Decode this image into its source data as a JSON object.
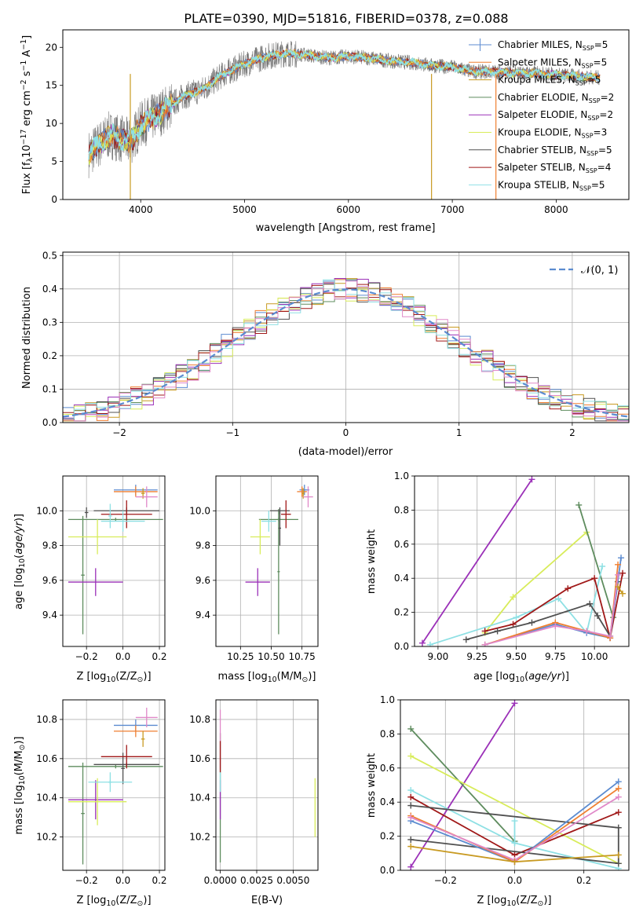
{
  "figure": {
    "title": "PLATE=0390, MJD=51816, FIBERID=0378, z=0.088"
  },
  "colors": {
    "Chabrier MILES": "#5b8bd0",
    "Salpeter MILES": "#ef7f30",
    "Kroupa MILES": "#c89a22",
    "Chabrier ELODIE": "#5e8c5e",
    "Salpeter ELODIE": "#9b30b8",
    "Kroupa ELODIE": "#d8ec5a",
    "Chabrier STELIB": "#505050",
    "Salpeter STELIB": "#a01818",
    "Kroupa STELIB": "#8ee0e4",
    "pink": "#e088c8",
    "normal_curve": "#5b8bd0",
    "grid": "#b0b0b0"
  },
  "chart_data": [
    {
      "id": "spectrum",
      "type": "line",
      "xlabel": "wavelength [Angstrom, rest frame]",
      "ylabel": "Flux [f",
      "ylabel_parts": [
        "Flux [f",
        "λ",
        "10",
        "−17",
        " erg cm",
        "−2",
        " s",
        "−1",
        " A",
        "−1",
        "]"
      ],
      "xlim": [
        3250,
        8700
      ],
      "ylim": [
        0,
        22.3
      ],
      "xticks": [
        4000,
        5000,
        6000,
        7000,
        8000
      ],
      "yticks": [
        0,
        5,
        10,
        15,
        20
      ],
      "grid": false,
      "legend_position": "upper right",
      "continuum": {
        "x": [
          3500,
          3700,
          3900,
          4000,
          4200,
          4400,
          4600,
          4800,
          5000,
          5200,
          5400,
          5600,
          5800,
          6000,
          6200,
          6400,
          6600,
          6800,
          7000,
          7200,
          7400,
          7600,
          7800,
          8000,
          8200,
          8400
        ],
        "y": [
          6.0,
          8.5,
          7.5,
          9.8,
          11.5,
          13.5,
          14.5,
          16.5,
          17.8,
          18.8,
          19.2,
          19.0,
          18.6,
          18.8,
          18.6,
          18.2,
          18.0,
          17.6,
          17.4,
          16.8,
          16.8,
          16.6,
          16.6,
          16.4,
          16.2,
          16.0
        ]
      },
      "series": [
        {
          "name": "Chabrier MILES",
          "nssp": "5"
        },
        {
          "name": "Salpeter MILES",
          "nssp": "5"
        },
        {
          "name": "Kroupa MILES",
          "nssp": "5"
        },
        {
          "name": "Chabrier ELODIE",
          "nssp": "2"
        },
        {
          "name": "Salpeter ELODIE",
          "nssp": "2"
        },
        {
          "name": "Kroupa ELODIE",
          "nssp": "3"
        },
        {
          "name": "Chabrier STELIB",
          "nssp": "5"
        },
        {
          "name": "Salpeter STELIB",
          "nssp": "4"
        },
        {
          "name": "Kroupa STELIB",
          "nssp": "5"
        }
      ],
      "legend_nssp_label": "N",
      "legend_nssp_sub": "SSP"
    },
    {
      "id": "residuals",
      "type": "line",
      "xlabel": "(data-model)/error",
      "ylabel": "Normed distribution",
      "xlim": [
        -2.5,
        2.5
      ],
      "ylim": [
        0,
        0.51
      ],
      "xticks": [
        -2,
        -1,
        0,
        1,
        2
      ],
      "xtick_labels": [
        "−2",
        "−1",
        "0",
        "1",
        "2"
      ],
      "yticks": [
        0.0,
        0.1,
        0.2,
        0.3,
        0.4,
        0.5
      ],
      "ytick_labels": [
        "0.0",
        "0.1",
        "0.2",
        "0.3",
        "0.4",
        "0.5"
      ],
      "grid": true,
      "legend_position": "upper right",
      "legend_label": "𝒩(0, 1)",
      "bin_width": 0.1
    },
    {
      "id": "age_vs_Z",
      "type": "scatter",
      "xlabel": "Z [log",
      "xlabel_parts": [
        "Z [log",
        "10",
        "(Z/Z",
        "⊙",
        ")]"
      ],
      "ylabel_parts": [
        "age  [log",
        "10",
        "(",
        "age/yr",
        ")]"
      ],
      "xlim": [
        -0.33,
        0.23
      ],
      "ylim": [
        9.22,
        10.2
      ],
      "xticks": [
        -0.2,
        0.0,
        0.2
      ],
      "xtick_labels": [
        "−0.2",
        "0.0",
        "0.2"
      ],
      "yticks": [
        9.4,
        9.6,
        9.8,
        10.0
      ],
      "ytick_labels": [
        "9.4",
        "9.6",
        "9.8",
        "10.0"
      ],
      "grid": true,
      "points": [
        {
          "series": "Chabrier MILES",
          "x": 0.07,
          "xerr": 0.12,
          "y": 10.12,
          "yerr": 0.03
        },
        {
          "series": "Salpeter MILES",
          "x": 0.07,
          "xerr": 0.12,
          "y": 10.11,
          "yerr": 0.03
        },
        {
          "series": "Kroupa MILES",
          "x": 0.11,
          "xerr": 0.01,
          "y": 10.1,
          "yerr": 0.03
        },
        {
          "series": "pink",
          "x": 0.13,
          "xerr": 0.06,
          "y": 10.08,
          "yerr": 0.06
        },
        {
          "series": "Chabrier ELODIE",
          "x": -0.04,
          "xerr": 0.26,
          "y": 9.95,
          "yerr": 0.01
        },
        {
          "series": "Chabrier ELODIE",
          "x": -0.22,
          "xerr": 0.01,
          "y": 9.63,
          "yerr": 0.34
        },
        {
          "series": "Salpeter ELODIE",
          "x": -0.15,
          "xerr": 0.15,
          "y": 9.59,
          "yerr": 0.08
        },
        {
          "series": "Kroupa ELODIE",
          "x": -0.14,
          "xerr": 0.16,
          "y": 9.85,
          "yerr": 0.1
        },
        {
          "series": "Chabrier STELIB",
          "x": 0.02,
          "xerr": 0.18,
          "y": 10.0,
          "yerr": 0.02
        },
        {
          "series": "Chabrier STELIB",
          "x": -0.2,
          "xerr": 0.01,
          "y": 9.99,
          "yerr": 0.03
        },
        {
          "series": "Salpeter STELIB",
          "x": 0.02,
          "xerr": 0.14,
          "y": 9.98,
          "yerr": 0.08
        },
        {
          "series": "Kroupa STELIB",
          "x": 0.0,
          "xerr": 0.12,
          "y": 9.94,
          "yerr": 0.06
        },
        {
          "series": "Kroupa STELIB",
          "x": -0.07,
          "xerr": 0.01,
          "y": 9.97,
          "yerr": 0.07
        }
      ]
    },
    {
      "id": "age_vs_mass",
      "type": "scatter",
      "xlabel_parts": [
        "mass [log",
        "10",
        "(M/M",
        "⊙",
        ")]"
      ],
      "xlim": [
        10.05,
        10.88
      ],
      "ylim": [
        9.22,
        10.2
      ],
      "xticks": [
        10.25,
        10.5,
        10.75
      ],
      "xtick_labels": [
        "10.25",
        "10.50",
        "10.75"
      ],
      "yticks": [
        9.4,
        9.6,
        9.8,
        10.0
      ],
      "ytick_labels": [
        "9.4",
        "9.6",
        "9.8",
        "10.0"
      ],
      "grid": true,
      "points": [
        {
          "series": "Chabrier MILES",
          "x": 10.77,
          "xerr": 0.04,
          "y": 10.12,
          "yerr": 0.03
        },
        {
          "series": "Salpeter MILES",
          "x": 10.75,
          "xerr": 0.04,
          "y": 10.11,
          "yerr": 0.03
        },
        {
          "series": "Kroupa MILES",
          "x": 10.76,
          "xerr": 0.01,
          "y": 10.1,
          "yerr": 0.03
        },
        {
          "series": "pink",
          "x": 10.8,
          "xerr": 0.04,
          "y": 10.08,
          "yerr": 0.06
        },
        {
          "series": "Chabrier ELODIE",
          "x": 10.56,
          "xerr": 0.16,
          "y": 9.95,
          "yerr": 0.01
        },
        {
          "series": "Chabrier ELODIE",
          "x": 10.56,
          "xerr": 0.01,
          "y": 9.65,
          "yerr": 0.36
        },
        {
          "series": "Salpeter ELODIE",
          "x": 10.39,
          "xerr": 0.1,
          "y": 9.59,
          "yerr": 0.08
        },
        {
          "series": "Kroupa ELODIE",
          "x": 10.41,
          "xerr": 0.08,
          "y": 9.85,
          "yerr": 0.1
        },
        {
          "series": "Chabrier STELIB",
          "x": 10.57,
          "xerr": 0.08,
          "y": 10.0,
          "yerr": 0.02
        },
        {
          "series": "Chabrier STELIB",
          "x": 10.57,
          "xerr": 0.01,
          "y": 9.9,
          "yerr": 0.1
        },
        {
          "series": "Salpeter STELIB",
          "x": 10.62,
          "xerr": 0.04,
          "y": 9.98,
          "yerr": 0.08
        },
        {
          "series": "Kroupa STELIB",
          "x": 10.48,
          "xerr": 0.06,
          "y": 9.94,
          "yerr": 0.06
        }
      ]
    },
    {
      "id": "mass_weight_vs_age",
      "type": "line",
      "xlabel_parts": [
        "age  [log",
        "10",
        "(",
        "age/yr",
        ")]"
      ],
      "ylabel": "mass weight",
      "xlim": [
        8.85,
        10.22
      ],
      "ylim": [
        0,
        1.0
      ],
      "xticks": [
        9.0,
        9.25,
        9.5,
        9.75,
        10.0
      ],
      "xtick_labels": [
        "9.00",
        "9.25",
        "9.50",
        "9.75",
        "10.00"
      ],
      "yticks": [
        0.0,
        0.2,
        0.4,
        0.6,
        0.8,
        1.0
      ],
      "ytick_labels": [
        "0.0",
        "0.2",
        "0.4",
        "0.6",
        "0.8",
        "1.0"
      ],
      "grid": true,
      "series": [
        {
          "name": "Salpeter ELODIE",
          "x": [
            8.9,
            9.6
          ],
          "y": [
            0.02,
            0.98
          ]
        },
        {
          "name": "Kroupa ELODIE",
          "x": [
            9.3,
            9.48,
            9.95
          ],
          "y": [
            0.08,
            0.29,
            0.67
          ]
        },
        {
          "name": "Chabrier ELODIE",
          "x": [
            9.9,
            10.12
          ],
          "y": [
            0.83,
            0.17
          ]
        },
        {
          "name": "Kroupa STELIB",
          "x": [
            8.95,
            9.5,
            9.77,
            9.95,
            10.05
          ],
          "y": [
            0.01,
            0.17,
            0.28,
            0.08,
            0.47
          ]
        },
        {
          "name": "Salpeter STELIB",
          "x": [
            9.3,
            9.48,
            9.83,
            10.0,
            10.1,
            10.18
          ],
          "y": [
            0.09,
            0.13,
            0.34,
            0.4,
            0.05,
            0.43
          ]
        },
        {
          "name": "Chabrier STELIB",
          "x": [
            9.18,
            9.38,
            9.6,
            9.97,
            10.02,
            10.1,
            10.15
          ],
          "y": [
            0.04,
            0.09,
            0.14,
            0.25,
            0.18,
            0.06,
            0.38
          ]
        },
        {
          "name": "Chabrier MILES",
          "x": [
            9.3,
            9.75,
            9.95,
            10.1,
            10.17
          ],
          "y": [
            0.01,
            0.13,
            0.08,
            0.05,
            0.52
          ]
        },
        {
          "name": "Salpeter MILES",
          "x": [
            9.3,
            9.75,
            9.95,
            10.1,
            10.15
          ],
          "y": [
            0.01,
            0.14,
            0.09,
            0.05,
            0.48
          ]
        },
        {
          "name": "pink",
          "x": [
            9.3,
            9.75,
            9.95,
            10.1,
            10.15
          ],
          "y": [
            0.01,
            0.12,
            0.09,
            0.06,
            0.42
          ]
        },
        {
          "name": "Kroupa MILES",
          "x": [
            10.15,
            10.18
          ],
          "y": [
            0.35,
            0.31
          ]
        }
      ]
    },
    {
      "id": "mass_vs_Z",
      "type": "scatter",
      "xlabel_parts": [
        "Z [log",
        "10",
        "(Z/Z",
        "⊙",
        ")]"
      ],
      "ylabel_parts": [
        "mass [log",
        "10",
        "(M/M",
        "⊙",
        ")]"
      ],
      "xlim": [
        -0.33,
        0.23
      ],
      "ylim": [
        10.03,
        10.9
      ],
      "xticks": [
        -0.2,
        0.0,
        0.2
      ],
      "xtick_labels": [
        "−0.2",
        "0.0",
        "0.2"
      ],
      "yticks": [
        10.2,
        10.4,
        10.6,
        10.8
      ],
      "ytick_labels": [
        "10.2",
        "10.4",
        "10.6",
        "10.8"
      ],
      "grid": true,
      "points": [
        {
          "series": "Chabrier MILES",
          "x": 0.07,
          "xerr": 0.12,
          "y": 10.77,
          "yerr": 0.03
        },
        {
          "series": "Salpeter MILES",
          "x": 0.07,
          "xerr": 0.12,
          "y": 10.74,
          "yerr": 0.03
        },
        {
          "series": "Kroupa MILES",
          "x": 0.11,
          "xerr": 0.01,
          "y": 10.7,
          "yerr": 0.04
        },
        {
          "series": "pink",
          "x": 0.13,
          "xerr": 0.06,
          "y": 10.81,
          "yerr": 0.05
        },
        {
          "series": "Chabrier ELODIE",
          "x": -0.04,
          "xerr": 0.26,
          "y": 10.56,
          "yerr": 0.01
        },
        {
          "series": "Chabrier ELODIE",
          "x": -0.22,
          "xerr": 0.01,
          "y": 10.32,
          "yerr": 0.26
        },
        {
          "series": "Salpeter ELODIE",
          "x": -0.15,
          "xerr": 0.15,
          "y": 10.39,
          "yerr": 0.1
        },
        {
          "series": "Kroupa ELODIE",
          "x": -0.14,
          "xerr": 0.16,
          "y": 10.38,
          "yerr": 0.12
        },
        {
          "series": "Chabrier STELIB",
          "x": 0.02,
          "xerr": 0.18,
          "y": 10.57,
          "yerr": 0.01
        },
        {
          "series": "Chabrier STELIB",
          "x": 0.0,
          "xerr": 0.01,
          "y": 10.55,
          "yerr": 0.08
        },
        {
          "series": "Salpeter STELIB",
          "x": 0.02,
          "xerr": 0.14,
          "y": 10.61,
          "yerr": 0.06
        },
        {
          "series": "Kroupa STELIB",
          "x": -0.07,
          "xerr": 0.01,
          "y": 10.48,
          "yerr": 0.05
        },
        {
          "series": "Kroupa STELIB",
          "x": -0.07,
          "xerr": 0.12,
          "y": 10.48,
          "yerr": 0.01
        }
      ]
    },
    {
      "id": "mass_vs_ebv",
      "type": "scatter",
      "xlabel": "E(B-V)",
      "xlim": [
        -0.0003,
        0.0067
      ],
      "ylim": [
        10.03,
        10.9
      ],
      "xticks": [
        0.0,
        0.0025,
        0.005
      ],
      "xtick_labels": [
        "0.0000",
        "0.0025",
        "0.0050"
      ],
      "yticks": [
        10.2,
        10.4,
        10.6,
        10.8
      ],
      "ytick_labels": [
        "10.2",
        "10.4",
        "10.6",
        "10.8"
      ],
      "grid": true,
      "points": [
        {
          "series": "Chabrier ELODIE",
          "x": 0.0,
          "xerr": 0.0,
          "y": 10.4,
          "yerr": 0.33
        },
        {
          "series": "pink",
          "x": 0.0,
          "xerr": 0.0,
          "y": 10.7,
          "yerr": 0.15
        },
        {
          "series": "Salpeter ELODIE",
          "x": 0.0,
          "xerr": 0.0,
          "y": 10.39,
          "yerr": 0.1
        },
        {
          "series": "Salpeter STELIB",
          "x": 0.0,
          "xerr": 0.0,
          "y": 10.61,
          "yerr": 0.08
        },
        {
          "series": "Kroupa STELIB",
          "x": 0.0,
          "xerr": 0.0,
          "y": 10.48,
          "yerr": 0.05
        },
        {
          "series": "Kroupa ELODIE",
          "x": 0.0065,
          "xerr": 0.0,
          "y": 10.35,
          "yerr": 0.15
        }
      ]
    },
    {
      "id": "mass_weight_vs_Z",
      "type": "line",
      "xlabel_parts": [
        "Z [log",
        "10",
        "(Z/Z",
        "⊙",
        ")]"
      ],
      "ylabel": "mass weight",
      "xlim": [
        -0.33,
        0.33
      ],
      "ylim": [
        0,
        1.0
      ],
      "xticks": [
        -0.2,
        0.0,
        0.2
      ],
      "xtick_labels": [
        "−0.2",
        "0.0",
        "0.2"
      ],
      "yticks": [
        0.0,
        0.2,
        0.4,
        0.6,
        0.8,
        1.0
      ],
      "ytick_labels": [
        "0.0",
        "0.2",
        "0.4",
        "0.6",
        "0.8",
        "1.0"
      ],
      "grid": true,
      "series": [
        {
          "name": "Salpeter ELODIE",
          "x": [
            -0.3,
            0.0
          ],
          "y": [
            0.02,
            0.98
          ]
        },
        {
          "name": "Chabrier ELODIE",
          "x": [
            -0.3,
            0.0
          ],
          "y": [
            0.83,
            0.17
          ]
        },
        {
          "name": "Kroupa ELODIE",
          "x": [
            -0.3,
            0.3
          ],
          "y": [
            0.67,
            0.04
          ]
        },
        {
          "name": "Kroupa STELIB",
          "x": [
            -0.3,
            0.0,
            0.3
          ],
          "y": [
            0.47,
            0.16,
            0.01
          ]
        },
        {
          "name": "Salpeter STELIB",
          "x": [
            -0.3,
            0.0,
            0.3
          ],
          "y": [
            0.43,
            0.09,
            0.34
          ]
        },
        {
          "name": "Chabrier STELIB",
          "x": [
            -0.3,
            0.3,
            0.3,
            -0.3
          ],
          "y": [
            0.18,
            0.04,
            0.25,
            0.38
          ]
        },
        {
          "name": "Chabrier MILES",
          "x": [
            -0.3,
            0.0,
            0.3
          ],
          "y": [
            0.29,
            0.05,
            0.52
          ]
        },
        {
          "name": "Salpeter MILES",
          "x": [
            -0.3,
            0.0,
            0.3
          ],
          "y": [
            0.32,
            0.05,
            0.48
          ]
        },
        {
          "name": "pink",
          "x": [
            -0.3,
            0.0,
            0.3
          ],
          "y": [
            0.31,
            0.06,
            0.43
          ]
        },
        {
          "name": "Kroupa MILES",
          "x": [
            -0.3,
            0.0,
            0.3
          ],
          "y": [
            0.14,
            0.05,
            0.09
          ]
        },
        {
          "name": "Kroupa STELIB",
          "x": [
            0.0,
            0.0
          ],
          "y": [
            0.16,
            0.29
          ]
        }
      ]
    }
  ]
}
